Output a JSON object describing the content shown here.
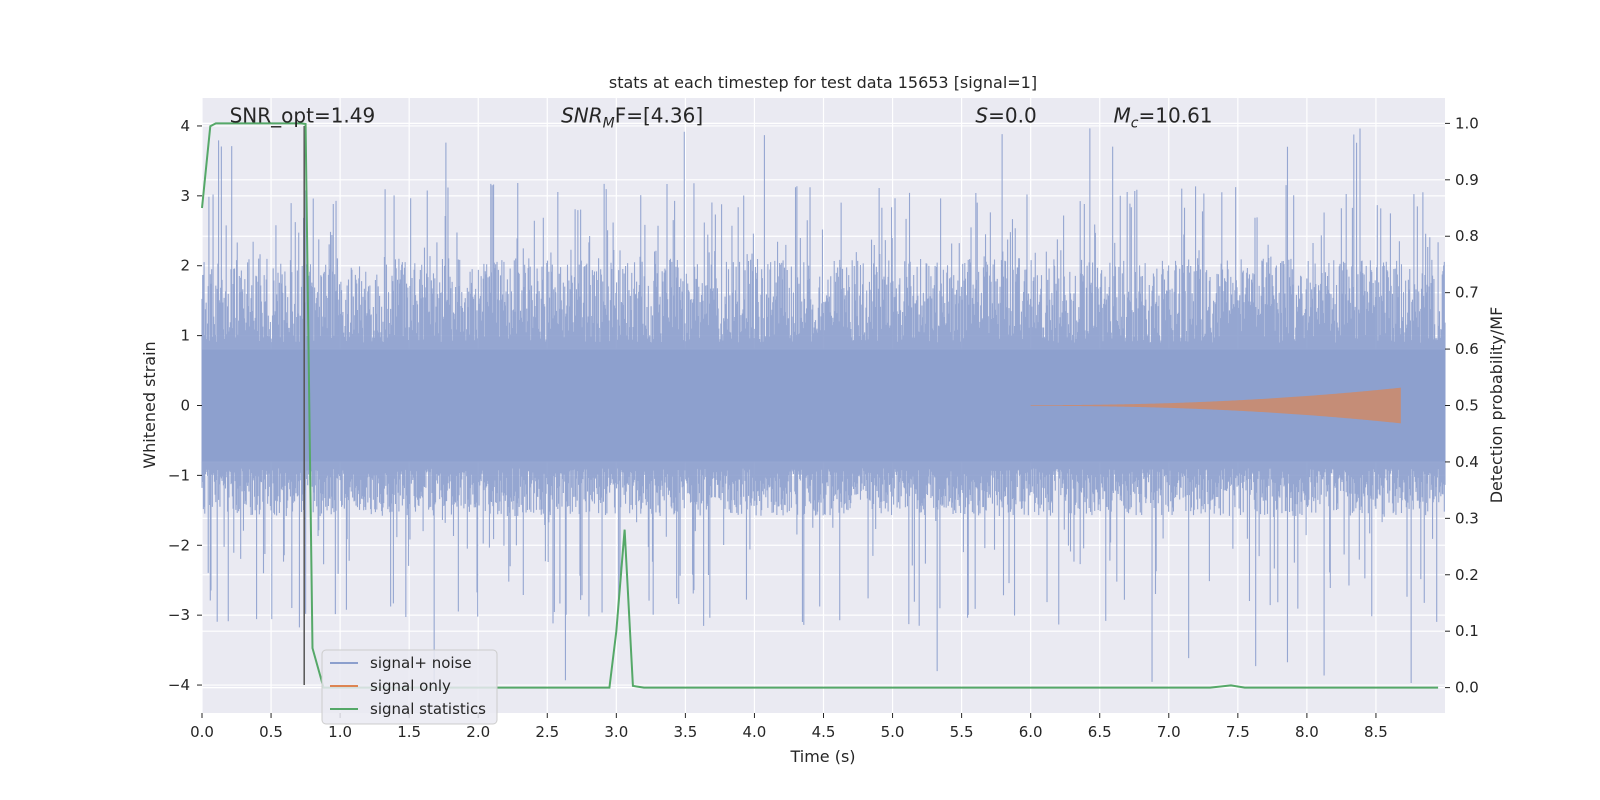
{
  "chart_data": {
    "type": "line",
    "title": "stats at each timestep for test data 15653 [signal=1]",
    "xlabel": "Time (s)",
    "ylabel_left": "Whitened strain",
    "ylabel_right": "Detection probability/MF",
    "xlim": [
      0.0,
      9.0
    ],
    "ylim_left": [
      -4.4,
      4.4
    ],
    "ylim_right": [
      -0.045,
      1.045
    ],
    "x_ticks": [
      "0.0",
      "0.5",
      "1.0",
      "1.5",
      "2.0",
      "2.5",
      "3.0",
      "3.5",
      "4.0",
      "4.5",
      "5.0",
      "5.5",
      "6.0",
      "6.5",
      "7.0",
      "7.5",
      "8.0",
      "8.5"
    ],
    "y_ticks_left": [
      "4",
      "3",
      "2",
      "1",
      "0",
      "−1",
      "−2",
      "−3",
      "−4"
    ],
    "y_ticks_right": [
      "1.0",
      "0.9",
      "0.8",
      "0.7",
      "0.6",
      "0.5",
      "0.4",
      "0.3",
      "0.2",
      "0.1",
      "0.0"
    ],
    "grid": true,
    "annotations": [
      {
        "prefix": "SNR_opt",
        "sub": "",
        "suffix": "=1.49",
        "italic": false,
        "x": 0.2,
        "y": 4.15
      },
      {
        "prefix": "SNR",
        "sub": "M",
        "suffix": "F=[4.36]",
        "italic": true,
        "x": 2.6,
        "y": 4.15
      },
      {
        "prefix": "S",
        "sub": "",
        "suffix": "=0.0",
        "italic": true,
        "x": 5.6,
        "y": 4.15
      },
      {
        "prefix": "M",
        "sub": "c",
        "suffix": "=10.61",
        "italic": true,
        "x": 6.6,
        "y": 4.15
      }
    ],
    "marker_line": {
      "x": 0.74,
      "y0": -4.0,
      "y1": 4.0
    },
    "legend": {
      "position": "lower-left",
      "entries": [
        {
          "name": "signal+ noise",
          "color": "#8c9fcd"
        },
        {
          "name": "signal only",
          "color": "#dd8452"
        },
        {
          "name": "signal statistics",
          "color": "#55a868"
        }
      ]
    },
    "series": [
      {
        "name": "signal+ noise",
        "axis": "left",
        "color": "#8c9fcd",
        "kind": "noise",
        "x_range": [
          0.0,
          9.0
        ],
        "typical_envelope": [
          -1.55,
          2.05
        ],
        "peak_max": 4.0,
        "peak_min": -4.0
      },
      {
        "name": "signal only",
        "axis": "left",
        "color": "#dd8452",
        "kind": "chirp",
        "x_range": [
          6.0,
          8.68
        ],
        "amplitude_end": 0.25
      },
      {
        "name": "signal statistics",
        "axis": "right",
        "color": "#55a868",
        "x": [
          0.0,
          0.06,
          0.1,
          0.2,
          0.6,
          0.72,
          0.75,
          0.8,
          0.88,
          1.0,
          2.5,
          2.95,
          3.0,
          3.06,
          3.12,
          3.2,
          4.0,
          7.3,
          7.45,
          7.55,
          8.0,
          8.95
        ],
        "values": [
          0.85,
          0.995,
          1.0,
          1.0,
          1.0,
          1.0,
          0.999,
          0.07,
          0.0,
          0.0,
          0.0,
          0.0,
          0.1,
          0.28,
          0.003,
          0.0,
          0.0,
          0.0,
          0.004,
          0.0,
          0.0,
          0.0
        ]
      }
    ]
  }
}
